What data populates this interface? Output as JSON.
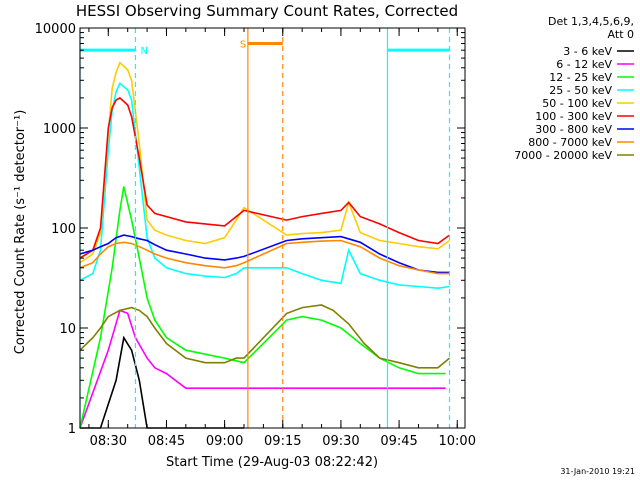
{
  "chart_data": {
    "type": "line",
    "title": "HESSI Observing Summary Count Rates, Corrected",
    "xlabel": "Start Time (29-Aug-03 08:22:42)",
    "ylabel": "Corrected Count Rate (s⁻¹ detector⁻¹)",
    "y_scale": "log",
    "ylim": [
      1,
      10000
    ],
    "xlim": [
      "08:22:42",
      "10:02:00"
    ],
    "y_ticks": [
      {
        "value": 1,
        "label": "1"
      },
      {
        "value": 10,
        "label": "10"
      },
      {
        "value": 100,
        "label": "100"
      },
      {
        "value": 1000,
        "label": "1000"
      },
      {
        "value": 10000,
        "label": "10000"
      }
    ],
    "x_ticks": [
      {
        "time": "08:30",
        "label": "08:30"
      },
      {
        "time": "08:45",
        "label": "08:45"
      },
      {
        "time": "09:00",
        "label": "09:00"
      },
      {
        "time": "09:15",
        "label": "09:15"
      },
      {
        "time": "09:30",
        "label": "09:30"
      },
      {
        "time": "09:45",
        "label": "09:45"
      },
      {
        "time": "10:00",
        "label": "10:00"
      }
    ],
    "legend": {
      "placement": "right",
      "header_line1": "Det 1,3,4,5,6,9,",
      "header_line2": "Att 0"
    },
    "series": [
      {
        "name": "3 - 6 keV",
        "color": "#000000",
        "x": [
          "08:22:42",
          "08:28",
          "08:32",
          "08:34",
          "08:36",
          "08:38",
          "08:40",
          "08:42",
          "08:44",
          "08:50",
          "08:55",
          "09:00",
          "09:03",
          "09:05"
        ],
        "y": [
          1,
          1,
          3,
          8,
          6,
          3,
          1,
          1,
          1,
          1,
          1,
          1,
          1,
          1
        ]
      },
      {
        "name": "6 - 12 keV",
        "color": "#ff00ff",
        "x": [
          "08:22:42",
          "08:30",
          "08:33",
          "08:35",
          "08:37",
          "08:40",
          "08:42",
          "08:45",
          "08:50",
          "09:00",
          "09:05",
          "09:16",
          "09:30",
          "09:40",
          "09:45",
          "09:50",
          "09:55",
          "09:57"
        ],
        "y": [
          1,
          6,
          15,
          14,
          8,
          5,
          4,
          3.5,
          2.5,
          2.5,
          2.5,
          2.5,
          2.5,
          2.5,
          2.5,
          2.5,
          2.5,
          2.5
        ]
      },
      {
        "name": "12 - 25 keV",
        "color": "#00ff00",
        "x": [
          "08:22:42",
          "08:28",
          "08:31",
          "08:33",
          "08:34",
          "08:36",
          "08:38",
          "08:40",
          "08:42",
          "08:45",
          "08:50",
          "09:00",
          "09:05",
          "09:16",
          "09:20",
          "09:25",
          "09:30",
          "09:35",
          "09:40",
          "09:45",
          "09:50",
          "09:55",
          "09:57"
        ],
        "y": [
          1,
          8,
          40,
          150,
          260,
          120,
          50,
          20,
          12,
          8,
          6,
          5,
          4.5,
          12,
          13,
          12,
          10,
          7,
          5,
          4,
          3.5,
          3.5,
          3.5
        ]
      },
      {
        "name": "25 - 50 keV",
        "color": "#00ffff",
        "x": [
          "08:22:42",
          "08:26",
          "08:28",
          "08:30",
          "08:31",
          "08:32",
          "08:33",
          "08:35",
          "08:36",
          "08:38",
          "08:40",
          "08:42",
          "08:45",
          "08:50",
          "08:55",
          "09:00",
          "09:03",
          "09:05",
          "09:16",
          "09:20",
          "09:25",
          "09:30",
          "09:32",
          "09:35",
          "09:40",
          "09:45",
          "09:50",
          "09:55",
          "09:58"
        ],
        "y": [
          30,
          35,
          60,
          600,
          1500,
          2300,
          2800,
          2400,
          1900,
          400,
          80,
          50,
          40,
          35,
          33,
          32,
          35,
          40,
          40,
          35,
          30,
          28,
          60,
          35,
          30,
          27,
          26,
          25,
          26
        ]
      },
      {
        "name": "50 - 100 keV",
        "color": "#ffcc00",
        "x": [
          "08:22:42",
          "08:26",
          "08:28",
          "08:30",
          "08:31",
          "08:32",
          "08:33",
          "08:35",
          "08:36",
          "08:38",
          "08:40",
          "08:42",
          "08:45",
          "08:50",
          "08:55",
          "09:00",
          "09:03",
          "09:05",
          "09:16",
          "09:20",
          "09:25",
          "09:30",
          "09:32",
          "09:35",
          "09:40",
          "09:45",
          "09:50",
          "09:55",
          "09:58"
        ],
        "y": [
          45,
          55,
          90,
          900,
          2500,
          3600,
          4500,
          3800,
          3000,
          700,
          120,
          95,
          85,
          75,
          70,
          80,
          120,
          160,
          85,
          88,
          90,
          95,
          180,
          90,
          75,
          70,
          65,
          62,
          75
        ]
      },
      {
        "name": "100 - 300 keV",
        "color": "#ff0000",
        "x": [
          "08:22:42",
          "08:26",
          "08:28",
          "08:30",
          "08:31",
          "08:32",
          "08:33",
          "08:35",
          "08:36",
          "08:38",
          "08:40",
          "08:42",
          "08:45",
          "08:50",
          "08:55",
          "09:00",
          "09:03",
          "09:05",
          "09:16",
          "09:20",
          "09:25",
          "09:30",
          "09:32",
          "09:35",
          "09:40",
          "09:45",
          "09:50",
          "09:55",
          "09:58"
        ],
        "y": [
          50,
          60,
          100,
          1000,
          1600,
          1900,
          2000,
          1700,
          1300,
          500,
          170,
          140,
          130,
          115,
          110,
          105,
          130,
          150,
          120,
          130,
          140,
          150,
          180,
          130,
          110,
          90,
          75,
          70,
          85
        ]
      },
      {
        "name": "300 - 800 keV",
        "color": "#0000ff",
        "x": [
          "08:22:42",
          "08:26",
          "08:28",
          "08:30",
          "08:31",
          "08:32",
          "08:34",
          "08:36",
          "08:38",
          "08:40",
          "08:42",
          "08:45",
          "08:50",
          "08:55",
          "09:00",
          "09:03",
          "09:05",
          "09:16",
          "09:20",
          "09:25",
          "09:30",
          "09:35",
          "09:40",
          "09:45",
          "09:50",
          "09:55",
          "09:58"
        ],
        "y": [
          55,
          60,
          65,
          70,
          75,
          80,
          85,
          82,
          78,
          75,
          68,
          60,
          55,
          50,
          48,
          50,
          52,
          75,
          78,
          80,
          82,
          72,
          55,
          45,
          38,
          36,
          36
        ]
      },
      {
        "name": "800 - 7000 keV",
        "color": "#ff8800",
        "x": [
          "08:22:42",
          "08:26",
          "08:28",
          "08:30",
          "08:32",
          "08:34",
          "08:36",
          "08:38",
          "08:40",
          "08:42",
          "08:45",
          "08:50",
          "08:55",
          "09:00",
          "09:03",
          "09:05",
          "09:16",
          "09:20",
          "09:25",
          "09:30",
          "09:35",
          "09:40",
          "09:45",
          "09:50",
          "09:55",
          "09:58"
        ],
        "y": [
          40,
          45,
          55,
          65,
          70,
          72,
          70,
          65,
          60,
          55,
          50,
          45,
          42,
          40,
          42,
          45,
          70,
          72,
          74,
          75,
          65,
          50,
          42,
          38,
          35,
          35
        ]
      },
      {
        "name": "7000 - 20000 keV",
        "color": "#808000",
        "x": [
          "08:22:42",
          "08:26",
          "08:28",
          "08:30",
          "08:33",
          "08:36",
          "08:38",
          "08:40",
          "08:42",
          "08:45",
          "08:50",
          "08:55",
          "09:00",
          "09:03",
          "09:05",
          "09:16",
          "09:20",
          "09:25",
          "09:28",
          "09:32",
          "09:36",
          "09:40",
          "09:45",
          "09:50",
          "09:55",
          "09:58"
        ],
        "y": [
          6,
          8,
          10,
          13,
          15,
          16,
          15,
          13,
          10,
          7,
          5,
          4.5,
          4.5,
          5,
          5,
          14,
          16,
          17,
          15,
          11,
          7,
          5,
          4.5,
          4,
          4,
          5
        ]
      }
    ],
    "annotations": [
      {
        "label": "N",
        "kind": "night",
        "color": "#00ffff",
        "intervals": [
          [
            "08:22:42",
            "08:37"
          ],
          [
            "09:42",
            "09:58"
          ]
        ],
        "level": 6000
      },
      {
        "label": "S",
        "kind": "saa",
        "color": "#ff8800",
        "intervals": [
          [
            "09:06",
            "09:15"
          ]
        ],
        "level": 7000
      }
    ]
  },
  "footer_date": "31-Jan-2010 19:21"
}
